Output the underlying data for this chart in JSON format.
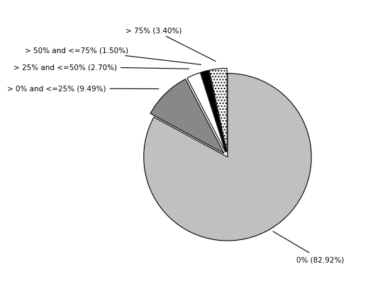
{
  "labels": [
    "0%",
    "> 0% and <=25%",
    "> 25% and <=50%",
    "> 50% and <=75%",
    "> 75%"
  ],
  "values": [
    82.92,
    9.49,
    2.7,
    1.5,
    3.4
  ],
  "colors": [
    "#c0c0c0",
    "#888888",
    "#ffffff",
    "#000000",
    "#ffffff"
  ],
  "hatch": [
    "",
    "",
    "",
    "",
    "...."
  ],
  "label_texts": [
    "0% (82.92%)",
    "> 0% and <=25% (9.49%)",
    "> 25% and <=50% (2.70%)",
    "> 50% and <=75% (1.50%)",
    "> 75% (3.40%)"
  ],
  "explode": [
    0,
    0.06,
    0.06,
    0.06,
    0.06
  ],
  "startangle": 90,
  "background_color": "#ffffff"
}
